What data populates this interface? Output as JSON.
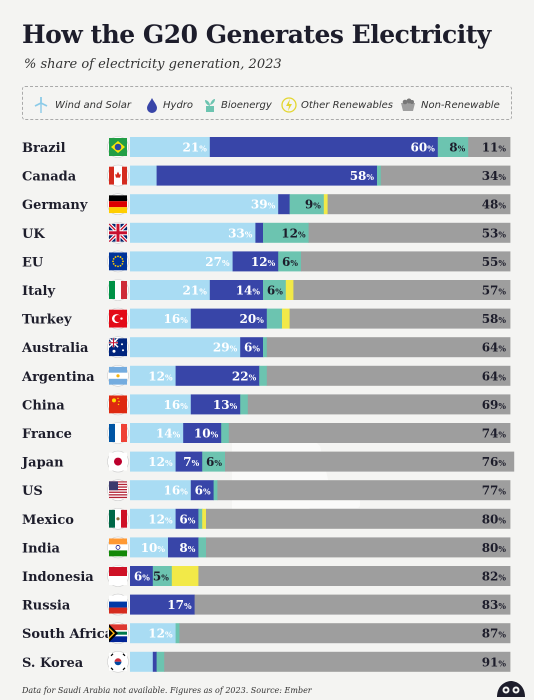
{
  "title": "How the G20 Generates Electricity",
  "subtitle": "% share of electricity generation, 2023",
  "legend": {
    "wind_solar": "Wind and Solar",
    "hydro": "Hydro",
    "bioenergy": "Bioenergy",
    "other": "Other Renewables",
    "nonrenewable": "Non-Renewable"
  },
  "footnote": "Data for Saudi Arabia not available. Figures as of 2023. Source: Ember",
  "colors": {
    "wind_solar": "#a9dcf3",
    "hydro": "#3845a8",
    "bioenergy": "#6cc4b0",
    "other": "#f2e948",
    "nonrenewable": "#9e9e9e"
  },
  "chart_data": {
    "type": "bar",
    "stacked": true,
    "orientation": "horizontal",
    "series_keys": [
      "wind_solar",
      "hydro",
      "bioenergy",
      "other",
      "nonrenewable"
    ],
    "rows": [
      {
        "name": "Brazil",
        "flag": "flag-brazil-icon",
        "values": [
          21,
          60,
          8,
          0,
          11
        ],
        "labels": [
          "21%",
          "60%",
          "8%",
          "",
          "11%"
        ]
      },
      {
        "name": "Canada",
        "flag": "flag-canada-icon",
        "values": [
          7,
          58,
          1,
          0,
          34
        ],
        "labels": [
          "",
          "58%",
          "",
          "",
          "34%"
        ]
      },
      {
        "name": "Germany",
        "flag": "flag-germany-icon",
        "values": [
          39,
          3,
          9,
          1,
          48
        ],
        "labels": [
          "39%",
          "",
          "9%",
          "",
          "48%"
        ]
      },
      {
        "name": "UK",
        "flag": "flag-uk-icon",
        "values": [
          33,
          2,
          12,
          0,
          53
        ],
        "labels": [
          "33%",
          "",
          "12%",
          "",
          "53%"
        ]
      },
      {
        "name": "EU",
        "flag": "flag-eu-icon",
        "values": [
          27,
          12,
          6,
          0,
          55
        ],
        "labels": [
          "27%",
          "12%",
          "6%",
          "",
          "55%"
        ]
      },
      {
        "name": "Italy",
        "flag": "flag-italy-icon",
        "values": [
          21,
          14,
          6,
          2,
          57
        ],
        "labels": [
          "21%",
          "14%",
          "6%",
          "",
          "57%"
        ]
      },
      {
        "name": "Turkey",
        "flag": "flag-turkey-icon",
        "values": [
          16,
          20,
          4,
          2,
          58
        ],
        "labels": [
          "16%",
          "20%",
          "",
          "",
          "58%"
        ]
      },
      {
        "name": "Australia",
        "flag": "flag-australia-icon",
        "values": [
          29,
          6,
          1,
          0,
          64
        ],
        "labels": [
          "29%",
          "6%",
          "",
          "",
          "64%"
        ]
      },
      {
        "name": "Argentina",
        "flag": "flag-argentina-icon",
        "values": [
          12,
          22,
          2,
          0,
          64
        ],
        "labels": [
          "12%",
          "22%",
          "",
          "",
          "64%"
        ]
      },
      {
        "name": "China",
        "flag": "flag-china-icon",
        "values": [
          16,
          13,
          2,
          0,
          69
        ],
        "labels": [
          "16%",
          "13%",
          "",
          "",
          "69%"
        ]
      },
      {
        "name": "France",
        "flag": "flag-france-icon",
        "values": [
          14,
          10,
          2,
          0,
          74
        ],
        "labels": [
          "14%",
          "10%",
          "",
          "",
          "74%"
        ]
      },
      {
        "name": "Japan",
        "flag": "flag-japan-icon",
        "values": [
          12,
          7,
          6,
          0,
          76
        ],
        "labels": [
          "12%",
          "7%",
          "6%",
          "",
          "76%"
        ]
      },
      {
        "name": "US",
        "flag": "flag-us-icon",
        "values": [
          16,
          6,
          1,
          0,
          77
        ],
        "labels": [
          "16%",
          "6%",
          "",
          "",
          "77%"
        ]
      },
      {
        "name": "Mexico",
        "flag": "flag-mexico-icon",
        "values": [
          12,
          6,
          1,
          1,
          80
        ],
        "labels": [
          "12%",
          "6%",
          "",
          "",
          "80%"
        ]
      },
      {
        "name": "India",
        "flag": "flag-india-icon",
        "values": [
          10,
          8,
          2,
          0,
          80
        ],
        "labels": [
          "10%",
          "8%",
          "",
          "",
          "80%"
        ]
      },
      {
        "name": "Indonesia",
        "flag": "flag-indonesia-icon",
        "values": [
          0,
          6,
          5,
          7,
          82
        ],
        "labels": [
          "",
          "6%",
          "5%",
          "",
          "82%"
        ]
      },
      {
        "name": "Russia",
        "flag": "flag-russia-icon",
        "values": [
          0,
          17,
          0,
          0,
          83
        ],
        "labels": [
          "",
          "17%",
          "",
          "",
          "83%"
        ]
      },
      {
        "name": "South Africa",
        "flag": "flag-south-africa-icon",
        "values": [
          12,
          0,
          1,
          0,
          87
        ],
        "labels": [
          "12%",
          "",
          "",
          "",
          "87%"
        ]
      },
      {
        "name": "S. Korea",
        "flag": "flag-south-korea-icon",
        "values": [
          6,
          1,
          2,
          0,
          91
        ],
        "labels": [
          "",
          "",
          "",
          "",
          "91%"
        ]
      }
    ],
    "xlim": [
      0,
      100
    ]
  }
}
